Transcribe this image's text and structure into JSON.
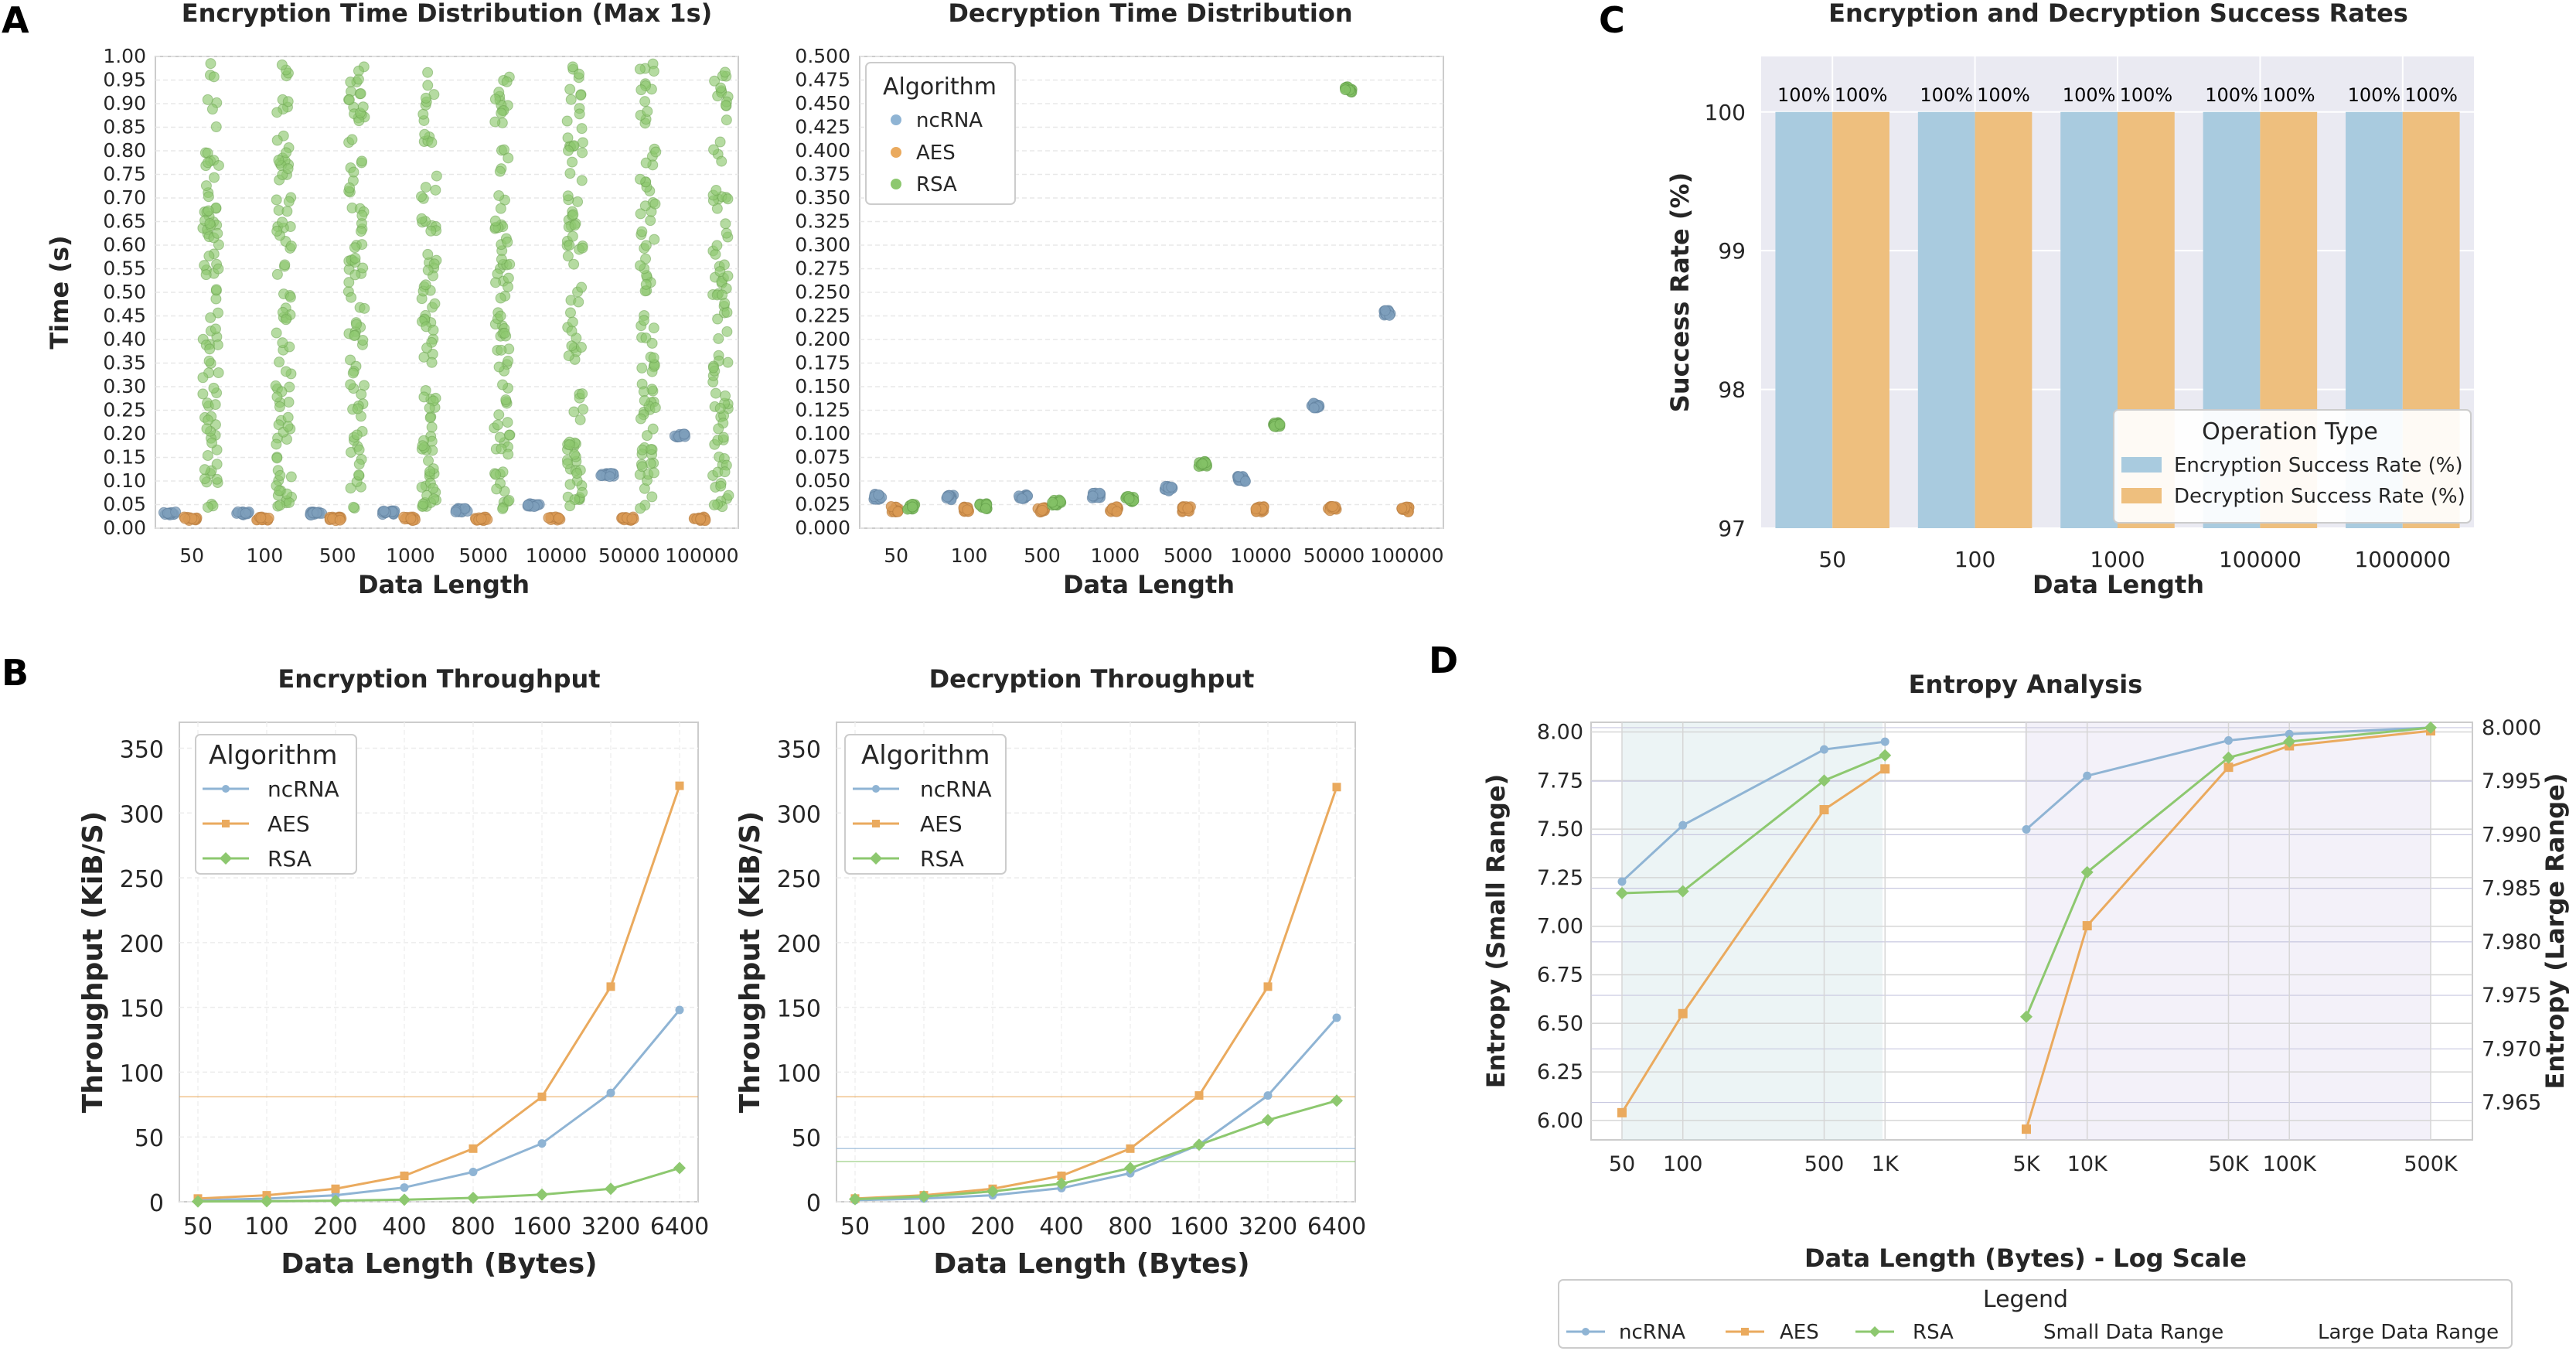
{
  "colors": {
    "ncrna": "#8fb4d4",
    "aes": "#eaaa5e",
    "rsa": "#8dc86f",
    "enc_bar": "#a9cbdf",
    "dec_bar": "#eebf7e",
    "grid": "#e5e5e5",
    "frame": "#cccccc"
  },
  "panel_labels": {
    "a": "A",
    "b": "B",
    "c": "C",
    "d": "D"
  },
  "algorithms": [
    "ncRNA",
    "AES",
    "RSA"
  ],
  "chart_data": [
    {
      "id": "enc_dist",
      "type": "scatter",
      "title": "Encryption Time Distribution (Max 1s)",
      "xlabel": "Data Length",
      "ylabel": "Time (s)",
      "categories": [
        "50",
        "100",
        "500",
        "1000",
        "5000",
        "10000",
        "50000",
        "100000"
      ],
      "ylim": [
        0,
        1.0
      ],
      "yticks": [
        "0.00",
        "0.05",
        "0.10",
        "0.15",
        "0.20",
        "0.25",
        "0.30",
        "0.35",
        "0.40",
        "0.45",
        "0.50",
        "0.55",
        "0.60",
        "0.65",
        "0.70",
        "0.75",
        "0.80",
        "0.85",
        "0.90",
        "0.95",
        "1.00"
      ],
      "series": [
        {
          "name": "ncRNA",
          "center": [
            0.031,
            0.031,
            0.031,
            0.033,
            0.038,
            0.047,
            0.113,
            0.196
          ],
          "spread": [
            0.004,
            0.004,
            0.004,
            0.004,
            0.004,
            0.005,
            0.004,
            0.004
          ]
        },
        {
          "name": "AES",
          "center": [
            0.02,
            0.02,
            0.02,
            0.02,
            0.02,
            0.02,
            0.02,
            0.02
          ],
          "spread": [
            0.004,
            0.004,
            0.004,
            0.004,
            0.004,
            0.004,
            0.004,
            0.004
          ]
        },
        {
          "name": "RSA",
          "range": [
            0.0,
            1.0
          ],
          "note": "dense spread 0.05-1.00 per category"
        }
      ]
    },
    {
      "id": "dec_dist",
      "type": "scatter",
      "title": "Decryption Time Distribution",
      "xlabel": "Data Length",
      "ylabel": "",
      "categories": [
        "50",
        "100",
        "500",
        "1000",
        "5000",
        "10000",
        "50000",
        "100000"
      ],
      "ylim": [
        0,
        0.5
      ],
      "yticks": [
        "0.000",
        "0.025",
        "0.050",
        "0.075",
        "0.100",
        "0.125",
        "0.150",
        "0.175",
        "0.200",
        "0.225",
        "0.250",
        "0.275",
        "0.300",
        "0.325",
        "0.350",
        "0.375",
        "0.400",
        "0.425",
        "0.450",
        "0.475",
        "0.500"
      ],
      "legend_title": "Algorithm",
      "series": [
        {
          "name": "ncRNA",
          "center": [
            0.033,
            0.033,
            0.034,
            0.035,
            0.042,
            0.052,
            0.13,
            0.228
          ]
        },
        {
          "name": "AES",
          "center": [
            0.02,
            0.02,
            0.02,
            0.02,
            0.02,
            0.02,
            0.02,
            0.02
          ]
        },
        {
          "name": "RSA",
          "center": [
            0.023,
            0.023,
            0.027,
            0.031,
            0.068,
            0.11,
            0.465,
            null
          ]
        }
      ]
    },
    {
      "id": "success",
      "type": "bar",
      "title": "Encryption and Decryption Success Rates",
      "xlabel": "Data Length",
      "ylabel": "Success Rate (%)",
      "categories": [
        "50",
        "100",
        "1000",
        "100000",
        "1000000"
      ],
      "ylim": [
        97,
        100.4
      ],
      "yticks": [
        "97",
        "98",
        "99",
        "100"
      ],
      "legend_title": "Operation Type",
      "series": [
        {
          "name": "Encryption Success Rate (%)",
          "values": [
            100,
            100,
            100,
            100,
            100
          ],
          "labels": [
            "100%",
            "100%",
            "100%",
            "100%",
            "100%"
          ]
        },
        {
          "name": "Decryption Success Rate (%)",
          "values": [
            100,
            100,
            100,
            100,
            100
          ],
          "labels": [
            "100%",
            "100%",
            "100%",
            "100%",
            "100%"
          ]
        }
      ]
    },
    {
      "id": "enc_tp",
      "type": "line",
      "title": "Encryption Throughput",
      "xlabel": "Data Length (Bytes)",
      "ylabel": "Throughput (KiB/S)",
      "categories": [
        "50",
        "100",
        "200",
        "400",
        "800",
        "1600",
        "3200",
        "6400"
      ],
      "ylim": [
        0,
        370
      ],
      "yticks": [
        "0",
        "50",
        "100",
        "150",
        "200",
        "250",
        "300",
        "350"
      ],
      "legend_title": "Algorithm",
      "series": [
        {
          "name": "ncRNA",
          "values": [
            1.2,
            2.4,
            5,
            11,
            23,
            45,
            84,
            148
          ]
        },
        {
          "name": "AES",
          "values": [
            2.5,
            5,
            10,
            20,
            41,
            81,
            166,
            321
          ]
        },
        {
          "name": "RSA",
          "values": [
            0.2,
            0.4,
            0.8,
            1.6,
            3,
            5.5,
            10,
            26
          ]
        }
      ]
    },
    {
      "id": "dec_tp",
      "type": "line",
      "title": "Decryption Throughput",
      "xlabel": "Data Length (Bytes)",
      "ylabel": "Throughput (KiB/S)",
      "categories": [
        "50",
        "100",
        "200",
        "400",
        "800",
        "1600",
        "3200",
        "6400"
      ],
      "ylim": [
        0,
        370
      ],
      "yticks": [
        "0",
        "50",
        "100",
        "150",
        "200",
        "250",
        "300",
        "350"
      ],
      "legend_title": "Algorithm",
      "series": [
        {
          "name": "ncRNA",
          "values": [
            1.2,
            2.5,
            5,
            10.5,
            22,
            44,
            82,
            142
          ]
        },
        {
          "name": "AES",
          "values": [
            2.5,
            5,
            10,
            20,
            41,
            82,
            166,
            320
          ]
        },
        {
          "name": "RSA",
          "values": [
            2,
            4,
            8,
            14,
            26,
            44,
            63,
            78
          ]
        }
      ]
    },
    {
      "id": "entropy",
      "type": "line",
      "title": "Entropy Analysis",
      "xlabel": "Data Length (Bytes) - Log Scale",
      "ylabel": "Entropy (Small Range)",
      "ylabel_right": "Entropy (Large Range)",
      "xticks": [
        "50",
        "100",
        "500",
        "1K",
        "5K",
        "10K",
        "50K",
        "100K",
        "500K"
      ],
      "ylim_left": [
        5.9,
        8.05
      ],
      "yticks_left": [
        "6.00",
        "6.25",
        "6.50",
        "6.75",
        "7.00",
        "7.25",
        "7.50",
        "7.75",
        "8.00"
      ],
      "ylim_right": [
        7.9615,
        8.0005
      ],
      "yticks_right": [
        "7.965",
        "7.970",
        "7.975",
        "7.980",
        "7.985",
        "7.990",
        "7.995",
        "8.000"
      ],
      "legend_title": "Legend",
      "legend_items": [
        "ncRNA",
        "AES",
        "RSA",
        "Small Data Range",
        "Large Data Range"
      ],
      "small_range": {
        "x": [
          50,
          100,
          500,
          1000
        ],
        "series": [
          {
            "name": "ncRNA",
            "values": [
              7.23,
              7.52,
              7.91,
              7.95
            ]
          },
          {
            "name": "AES",
            "values": [
              6.04,
              6.55,
              7.6,
              7.81
            ]
          },
          {
            "name": "RSA",
            "values": [
              7.17,
              7.18,
              7.75,
              7.88
            ]
          }
        ]
      },
      "large_range": {
        "x": [
          5000,
          10000,
          50000,
          100000,
          500000
        ],
        "series": [
          {
            "name": "ncRNA",
            "values": [
              7.9905,
              7.9955,
              7.9988,
              7.9994,
              8.0
            ]
          },
          {
            "name": "AES",
            "values": [
              7.9625,
              7.9815,
              7.9963,
              7.9983,
              7.9997
            ]
          },
          {
            "name": "RSA",
            "values": [
              7.973,
              7.9865,
              7.9972,
              7.9987,
              8.0
            ]
          }
        ]
      }
    }
  ]
}
